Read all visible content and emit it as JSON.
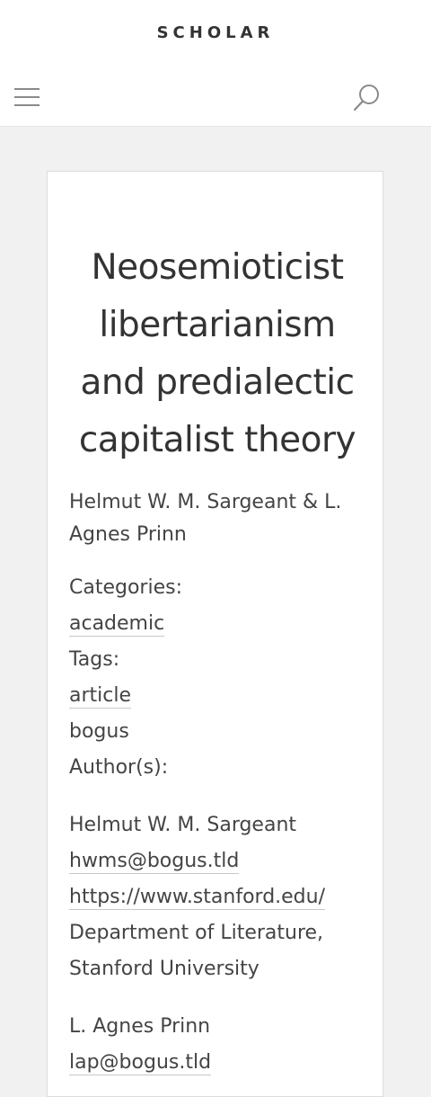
{
  "header": {
    "site_title": "SCHOLAR",
    "menu_icon": "hamburger-menu-icon",
    "search_icon": "search-icon"
  },
  "article": {
    "title": "Neosemioticist libertarianism and predialectic capitalist theory",
    "byline": "Helmut W. M. Sargeant & L. Agnes Prinn",
    "categories_label": "Categories:",
    "categories": [
      "academic"
    ],
    "tags_label": "Tags:",
    "tags": [
      "article",
      "bogus"
    ],
    "authors_label": "Author(s):",
    "authors": [
      {
        "name": "Helmut W. M. Sargeant",
        "email": "hwms@bogus.tld",
        "url": "https://www.stanford.edu/",
        "affiliation": "Department of Literature, Stanford University"
      },
      {
        "name": "L. Agnes Prinn",
        "email": "lap@bogus.tld"
      }
    ]
  },
  "colors": {
    "page_background": "#f1f1f1",
    "text": "#444444",
    "header_background": "#ffffff"
  }
}
